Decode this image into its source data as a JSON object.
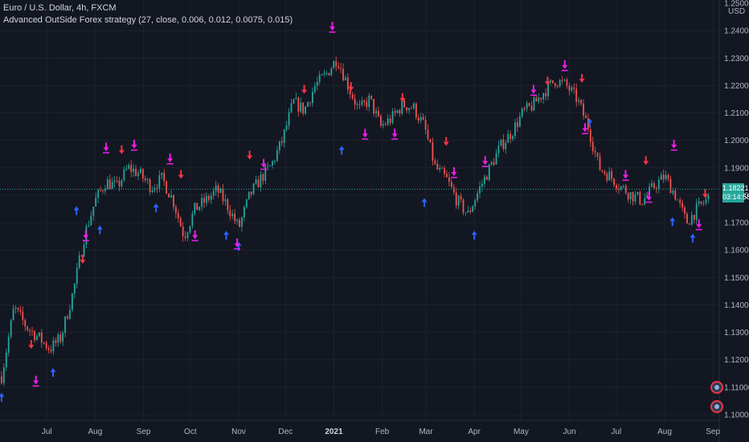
{
  "legend": {
    "symbol": "Euro / U.S. Dollar, 4h, FXCM",
    "indicator": "Advanced OutSide Forex strategy (27, close, 0.006, 0.012, 0.0075, 0.015)"
  },
  "price_axis": {
    "unit": "USD",
    "labels": [
      "1.25000",
      "1.24000",
      "1.23000",
      "1.22000",
      "1.21000",
      "1.20000",
      "1.19000",
      "1.18000",
      "1.17000",
      "1.16000",
      "1.15000",
      "1.14000",
      "1.13000",
      "1.12000",
      "1.11000",
      "1.10000"
    ]
  },
  "current_price": {
    "value": "1.18221",
    "countdown": "03:14:58",
    "color": "#26a69a"
  },
  "time_axis": {
    "labels": [
      "Jul",
      "Aug",
      "Sep",
      "Oct",
      "Nov",
      "Dec",
      "2021",
      "Feb",
      "Mar",
      "Apr",
      "May",
      "Jun",
      "Jul",
      "Aug",
      "Sep"
    ]
  },
  "colors": {
    "background": "#131722",
    "grid": "#1e222d",
    "up": "#26a69a",
    "down": "#ef5350",
    "long_entry": "#2962ff",
    "short_entry": "#f23645",
    "exit": "#e91ee6"
  },
  "chart_data": {
    "type": "line",
    "title": "Euro / U.S. Dollar, 4h, FXCM",
    "ylabel": "USD",
    "ylim": [
      1.0975,
      1.2505
    ],
    "x": [
      "2020-06-02",
      "2020-06-10",
      "2020-06-18",
      "2020-06-26",
      "2020-07-03",
      "2020-07-10",
      "2020-07-18",
      "2020-07-25",
      "2020-08-01",
      "2020-08-08",
      "2020-08-15",
      "2020-08-22",
      "2020-08-29",
      "2020-09-06",
      "2020-09-13",
      "2020-09-20",
      "2020-09-27",
      "2020-10-04",
      "2020-10-11",
      "2020-10-18",
      "2020-10-25",
      "2020-11-01",
      "2020-11-08",
      "2020-11-15",
      "2020-11-22",
      "2020-11-29",
      "2020-12-06",
      "2020-12-13",
      "2020-12-20",
      "2020-12-27",
      "2021-01-03",
      "2021-01-10",
      "2021-01-17",
      "2021-01-24",
      "2021-01-31",
      "2021-02-07",
      "2021-02-14",
      "2021-02-21",
      "2021-02-28",
      "2021-03-07",
      "2021-03-14",
      "2021-03-21",
      "2021-03-28",
      "2021-04-04",
      "2021-04-11",
      "2021-04-18",
      "2021-04-25",
      "2021-05-02",
      "2021-05-09",
      "2021-05-16",
      "2021-05-23",
      "2021-05-30",
      "2021-06-06",
      "2021-06-13",
      "2021-06-20",
      "2021-06-27",
      "2021-07-04",
      "2021-07-11",
      "2021-07-18",
      "2021-07-25",
      "2021-08-01",
      "2021-08-08",
      "2021-08-15",
      "2021-08-22",
      "2021-08-29"
    ],
    "series": [
      {
        "values": [
          1.114,
          1.139,
          1.132,
          1.128,
          1.124,
          1.128,
          1.145,
          1.165,
          1.178,
          1.185,
          1.183,
          1.19,
          1.188,
          1.183,
          1.186,
          1.178,
          1.165,
          1.175,
          1.178,
          1.182,
          1.176,
          1.168,
          1.18,
          1.186,
          1.191,
          1.2,
          1.214,
          1.211,
          1.22,
          1.224,
          1.23,
          1.22,
          1.211,
          1.215,
          1.205,
          1.208,
          1.213,
          1.212,
          1.205,
          1.19,
          1.186,
          1.178,
          1.173,
          1.182,
          1.19,
          1.198,
          1.203,
          1.21,
          1.213,
          1.218,
          1.222,
          1.22,
          1.215,
          1.205,
          1.19,
          1.187,
          1.183,
          1.18,
          1.178,
          1.183,
          1.187,
          1.18,
          1.17,
          1.175,
          1.179
        ]
      }
    ],
    "markers": {
      "long_entry": [
        [
          "2020-06-02",
          1.108
        ],
        [
          "2020-07-05",
          1.117
        ],
        [
          "2020-07-20",
          1.176
        ],
        [
          "2020-08-04",
          1.169
        ],
        [
          "2020-09-09",
          1.177
        ],
        [
          "2020-10-24",
          1.167
        ],
        [
          "2020-11-01",
          1.163
        ],
        [
          "2021-01-06",
          1.198
        ],
        [
          "2021-02-28",
          1.179
        ],
        [
          "2021-04-01",
          1.167
        ],
        [
          "2021-06-14",
          1.208
        ],
        [
          "2021-08-06",
          1.172
        ],
        [
          "2021-08-19",
          1.166
        ]
      ],
      "short_entry": [
        [
          "2020-06-21",
          1.124
        ],
        [
          "2020-07-24",
          1.155
        ],
        [
          "2020-08-18",
          1.195
        ],
        [
          "2020-09-25",
          1.186
        ],
        [
          "2020-11-08",
          1.193
        ],
        [
          "2020-12-13",
          1.217
        ],
        [
          "2021-01-12",
          1.218
        ],
        [
          "2021-02-14",
          1.214
        ],
        [
          "2021-03-14",
          1.198
        ],
        [
          "2021-05-18",
          1.22
        ],
        [
          "2021-06-09",
          1.221
        ],
        [
          "2021-07-20",
          1.191
        ],
        [
          "2021-08-27",
          1.179
        ]
      ],
      "exit": [
        [
          "2020-06-24",
          1.111
        ],
        [
          "2020-07-26",
          1.164
        ],
        [
          "2020-08-08",
          1.196
        ],
        [
          "2020-08-26",
          1.197
        ],
        [
          "2020-09-18",
          1.192
        ],
        [
          "2020-10-04",
          1.164
        ],
        [
          "2020-10-31",
          1.161
        ],
        [
          "2020-11-17",
          1.19
        ],
        [
          "2020-12-31",
          1.24
        ],
        [
          "2021-01-21",
          1.201
        ],
        [
          "2021-02-09",
          1.201
        ],
        [
          "2021-03-19",
          1.187
        ],
        [
          "2021-04-08",
          1.191
        ],
        [
          "2021-05-09",
          1.217
        ],
        [
          "2021-05-29",
          1.226
        ],
        [
          "2021-06-11",
          1.203
        ],
        [
          "2021-07-07",
          1.186
        ],
        [
          "2021-07-22",
          1.178
        ],
        [
          "2021-08-07",
          1.197
        ],
        [
          "2021-08-23",
          1.168
        ]
      ]
    }
  }
}
